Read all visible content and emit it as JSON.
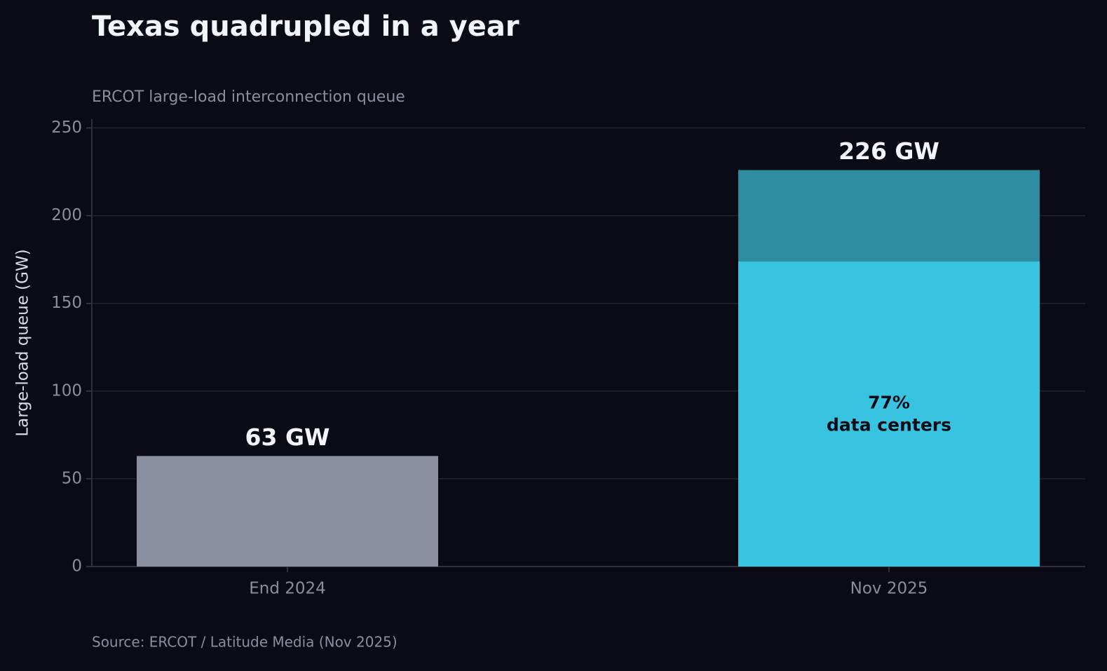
{
  "chart_data": {
    "type": "stacked-bar",
    "title": "Texas quadrupled in a year",
    "subtitle": "ERCOT large-load interconnection queue",
    "y_label": "Large-load queue (GW)",
    "source": "Source: ERCOT / Latitude Media (Nov 2025)",
    "categories": [
      "End 2024",
      "Nov 2025"
    ],
    "series": [
      {
        "color": "#8a8fa0",
        "values": [
          63,
          null
        ]
      },
      {
        "color": "#38c4e0",
        "values": [
          null,
          174
        ]
      },
      {
        "color": "#2e8ca0",
        "values": [
          null,
          52
        ]
      }
    ],
    "totals": [
      63,
      226
    ],
    "total_labels": [
      "63 GW",
      "226 GW"
    ],
    "annotation": [
      "77%",
      "data centers"
    ],
    "ylim": [
      0,
      255
    ],
    "yticks": [
      0,
      50,
      100,
      150,
      200,
      250
    ],
    "grid": true
  }
}
